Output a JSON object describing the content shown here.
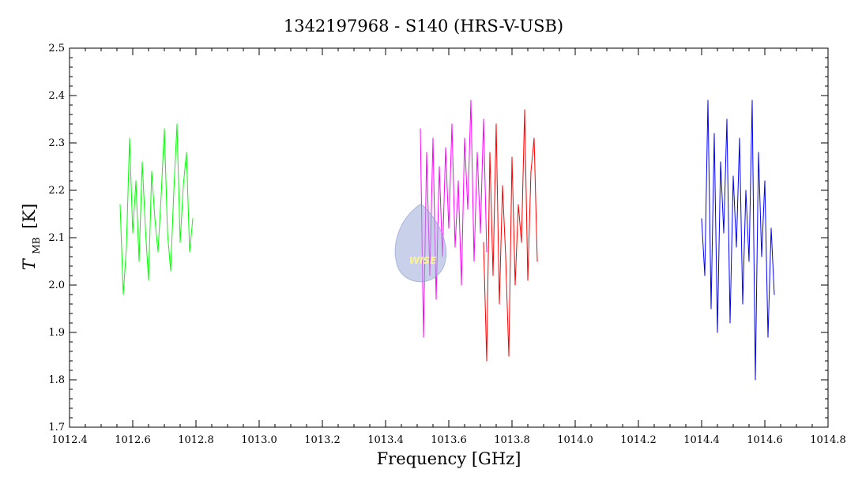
{
  "colors": {
    "series_1": "#00ff00",
    "series_2": "#ff00ff",
    "series_3": "#ff0000",
    "series_4": "#0000ff",
    "watermark_fill": "#9aa9d8",
    "watermark_text": "#fff38a"
  },
  "icon": "wise-watermark-icon",
  "watermark_text": "WISE",
  "chart_data": {
    "type": "line",
    "title": "1342197968 - S140 (HRS-V-USB)",
    "xlabel": "Frequency [GHz]",
    "ylabel": {
      "main": "T",
      "subscript": "MB",
      "unit": "[K]"
    },
    "xlim": [
      1012.4,
      1014.8
    ],
    "ylim": [
      1.7,
      2.5
    ],
    "x_ticks": [
      1012.4,
      1012.6,
      1012.8,
      1013.0,
      1013.2,
      1013.4,
      1013.6,
      1013.8,
      1014.0,
      1014.2,
      1014.4,
      1014.6,
      1014.8
    ],
    "x_tick_labels": [
      "1012.4",
      "1012.6",
      "1012.8",
      "1013.0",
      "1013.2",
      "1013.4",
      "1013.6",
      "1013.8",
      "1014.0",
      "1014.2",
      "1014.4",
      "1014.6",
      "1014.8"
    ],
    "y_ticks": [
      1.7,
      1.8,
      1.9,
      2.0,
      2.1,
      2.2,
      2.3,
      2.4,
      2.5
    ],
    "y_tick_labels": [
      "1.7",
      "1.8",
      "1.9",
      "2.0",
      "2.1",
      "2.2",
      "2.3",
      "2.4",
      "2.5"
    ],
    "grid": false,
    "legend": false,
    "series": [
      {
        "color": "#00ff00",
        "x": [
          1012.56,
          1012.57,
          1012.58,
          1012.59,
          1012.6,
          1012.61,
          1012.62,
          1012.63,
          1012.64,
          1012.65,
          1012.66,
          1012.67,
          1012.68,
          1012.69,
          1012.7,
          1012.71,
          1012.72,
          1012.73,
          1012.74,
          1012.75,
          1012.76,
          1012.77,
          1012.78,
          1012.79
        ],
        "y": [
          2.17,
          1.98,
          2.08,
          2.31,
          2.11,
          2.22,
          2.05,
          2.26,
          2.12,
          2.01,
          2.24,
          2.14,
          2.07,
          2.19,
          2.33,
          2.11,
          2.03,
          2.2,
          2.34,
          2.09,
          2.21,
          2.28,
          2.07,
          2.14
        ]
      },
      {
        "color": "#ff00ff",
        "x": [
          1013.51,
          1013.52,
          1013.53,
          1013.54,
          1013.55,
          1013.56,
          1013.57,
          1013.58,
          1013.59,
          1013.6,
          1013.61,
          1013.62,
          1013.63,
          1013.64,
          1013.65,
          1013.66,
          1013.67,
          1013.68,
          1013.69,
          1013.7,
          1013.71,
          1013.72
        ],
        "y": [
          2.33,
          1.89,
          2.28,
          2.02,
          2.31,
          1.97,
          2.25,
          2.06,
          2.29,
          2.12,
          2.34,
          2.08,
          2.22,
          2.0,
          2.31,
          2.16,
          2.39,
          2.05,
          2.28,
          2.11,
          2.35,
          2.07
        ]
      },
      {
        "color": "#ff0000",
        "x": [
          1013.71,
          1013.72,
          1013.73,
          1013.74,
          1013.75,
          1013.76,
          1013.77,
          1013.78,
          1013.79,
          1013.8,
          1013.81,
          1013.82,
          1013.83,
          1013.84,
          1013.85,
          1013.86,
          1013.87,
          1013.88
        ],
        "y": [
          2.09,
          1.84,
          2.28,
          2.02,
          2.34,
          1.96,
          2.21,
          2.06,
          1.85,
          2.27,
          2.0,
          2.17,
          2.09,
          2.37,
          2.01,
          2.24,
          2.31,
          2.05
        ]
      },
      {
        "color": "#0000ff",
        "x": [
          1014.4,
          1014.41,
          1014.42,
          1014.43,
          1014.44,
          1014.45,
          1014.46,
          1014.47,
          1014.48,
          1014.49,
          1014.5,
          1014.51,
          1014.52,
          1014.53,
          1014.54,
          1014.55,
          1014.56,
          1014.57,
          1014.58,
          1014.59,
          1014.6,
          1014.61,
          1014.62,
          1014.63
        ],
        "y": [
          2.14,
          2.02,
          2.39,
          1.95,
          2.32,
          1.9,
          2.26,
          2.11,
          2.35,
          1.92,
          2.23,
          2.08,
          2.31,
          1.96,
          2.2,
          2.05,
          2.39,
          1.8,
          2.28,
          2.06,
          2.22,
          1.89,
          2.12,
          1.98
        ]
      }
    ]
  }
}
